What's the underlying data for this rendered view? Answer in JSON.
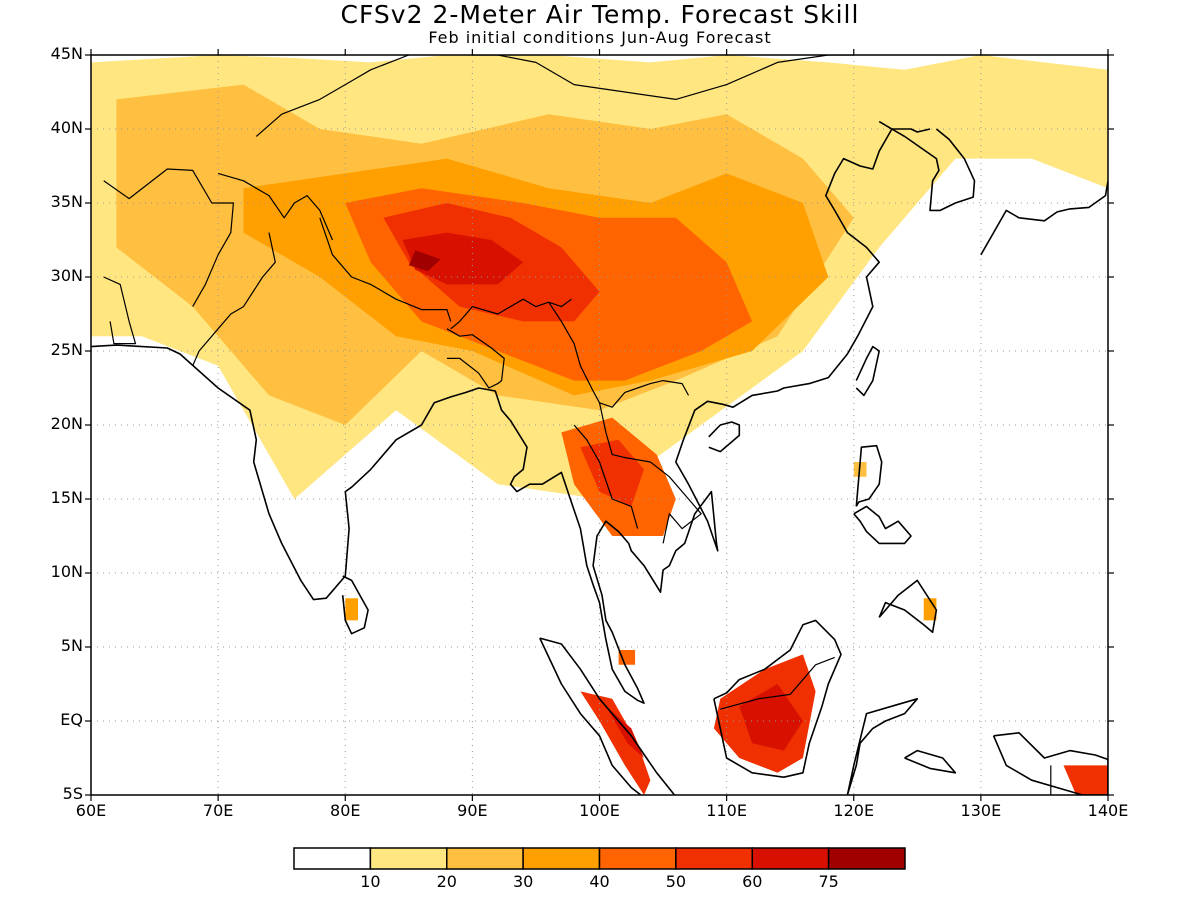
{
  "title": "CFSv2 2-Meter Air Temp. Forecast Skill",
  "subtitle": "Feb initial conditions  Jun-Aug Forecast",
  "map": {
    "lon_range": [
      60,
      140
    ],
    "lat_range": [
      -5,
      45
    ],
    "lon_ticks": [
      "60E",
      "70E",
      "80E",
      "90E",
      "100E",
      "110E",
      "120E",
      "130E",
      "140E"
    ],
    "lat_ticks": [
      "45N",
      "40N",
      "35N",
      "30N",
      "25N",
      "20N",
      "15N",
      "10N",
      "5N",
      "EQ",
      "5S"
    ],
    "gridlines": "dotted"
  },
  "colorbar": {
    "levels": [
      "10",
      "20",
      "30",
      "40",
      "50",
      "60",
      "75"
    ],
    "colors": [
      "#ffffff",
      "#ffe680",
      "#ffbf40",
      "#ffa000",
      "#ff6400",
      "#f03000",
      "#d71000",
      "#a00000"
    ]
  },
  "skill_regions": [
    {
      "level": 1,
      "lons": [
        60,
        70,
        76,
        82,
        88,
        96,
        104,
        110,
        118,
        124,
        130,
        140,
        140,
        134,
        128,
        122,
        116,
        108,
        100,
        92,
        84,
        76,
        70,
        64,
        60
      ],
      "lats": [
        44.5,
        45,
        44.8,
        44.5,
        45,
        45,
        44.5,
        45,
        44.5,
        44,
        45,
        44,
        36,
        38,
        38,
        32,
        25,
        20,
        15,
        16,
        21,
        15,
        24,
        26,
        26
      ]
    },
    {
      "level": 2,
      "lons": [
        62,
        72,
        78,
        86,
        96,
        104,
        110,
        116,
        120,
        114,
        106,
        100,
        92,
        86,
        80,
        74,
        68,
        62
      ],
      "lats": [
        42,
        43,
        40,
        39,
        41,
        40,
        41,
        38,
        34,
        26,
        23,
        21,
        22,
        25,
        20,
        22,
        28,
        32
      ]
    },
    {
      "level": 3,
      "lons": [
        72,
        80,
        88,
        96,
        104,
        110,
        116,
        118,
        112,
        104,
        98,
        90,
        84,
        78,
        72
      ],
      "lats": [
        36,
        37,
        38,
        36,
        35,
        37,
        35,
        30,
        25,
        23,
        22,
        25,
        26,
        30,
        33
      ]
    },
    {
      "level": 4,
      "lons": [
        80,
        86,
        94,
        100,
        106,
        110,
        112,
        108,
        102,
        98,
        92,
        86,
        82
      ],
      "lats": [
        35,
        36,
        35,
        34,
        34,
        31,
        27,
        25,
        23,
        23,
        25,
        27,
        31
      ]
    },
    {
      "level": 5,
      "lons": [
        83,
        88,
        93,
        97,
        100,
        98,
        94,
        89,
        85
      ],
      "lats": [
        34,
        35,
        34,
        32,
        29,
        27,
        27,
        28,
        31
      ]
    },
    {
      "level": 6,
      "lons": [
        84.5,
        88,
        91.5,
        94,
        92,
        88,
        85.5
      ],
      "lats": [
        32.5,
        33,
        32.5,
        31,
        29.5,
        29.5,
        30.5
      ]
    },
    {
      "level": 7,
      "lons": [
        85.5,
        87.5,
        86.5,
        85
      ],
      "lats": [
        31.8,
        31.2,
        30.4,
        30.8
      ]
    },
    {
      "level": 4,
      "lons": [
        97,
        101,
        104.5,
        106,
        105,
        101,
        98
      ],
      "lats": [
        19.5,
        20.5,
        18,
        15,
        12.5,
        12.5,
        16
      ]
    },
    {
      "level": 5,
      "lons": [
        98.5,
        101.5,
        103.5,
        102.5,
        100
      ],
      "lats": [
        18.5,
        19,
        17,
        14.5,
        15.5
      ]
    },
    {
      "level": 5,
      "lons": [
        109.5,
        113,
        116,
        117,
        116,
        114,
        111,
        109
      ],
      "lats": [
        1.5,
        3.5,
        4.5,
        2,
        -2.5,
        -3.5,
        -2.5,
        -0.5
      ]
    },
    {
      "level": 6,
      "lons": [
        111,
        114,
        116,
        114.5,
        112
      ],
      "lats": [
        1,
        2.5,
        0,
        -2,
        -1.5
      ]
    },
    {
      "level": 5,
      "lons": [
        98.5,
        101,
        103,
        104,
        103.5,
        102,
        100
      ],
      "lats": [
        2,
        1.5,
        -1.5,
        -4,
        -5,
        -3,
        0
      ]
    },
    {
      "level": 6,
      "lons": [
        100.5,
        102.5,
        103.5,
        102.2
      ],
      "lats": [
        1,
        -0.5,
        -2.5,
        -1.5
      ]
    },
    {
      "level": 5,
      "lons": [
        136.5,
        140,
        140,
        137.5
      ],
      "lats": [
        -3,
        -3,
        -5,
        -5
      ]
    },
    {
      "level": 3,
      "lons": [
        125.5,
        126.5,
        126.5,
        125.5
      ],
      "lats": [
        8.3,
        8.3,
        6.8,
        6.8
      ]
    },
    {
      "level": 3,
      "lons": [
        80,
        81,
        81,
        80
      ],
      "lats": [
        8.3,
        8.3,
        6.8,
        6.8
      ]
    },
    {
      "level": 2,
      "lons": [
        120,
        121,
        121,
        120
      ],
      "lats": [
        17.5,
        17.5,
        16.5,
        16.5
      ]
    },
    {
      "level": 4,
      "lons": [
        101.5,
        102.8,
        102.8,
        101.5
      ],
      "lats": [
        4.8,
        4.8,
        3.8,
        3.8
      ]
    }
  ],
  "coastlines": [
    {
      "lons": [
        60,
        62,
        66,
        67,
        70,
        72.5,
        73,
        72.8,
        74,
        75,
        76.5,
        77.5,
        78.5,
        80,
        80.3,
        80,
        80.5,
        82,
        84,
        86,
        87,
        88.3,
        89.5,
        90.5,
        91.8,
        92.3,
        93,
        94.3,
        94,
        93.3,
        93,
        93.5,
        94.5,
        95.5,
        97,
        97.7,
        98.5,
        99,
        99.5,
        100,
        100.3,
        100.5,
        101,
        102,
        103,
        103.5,
        103,
        102,
        101,
        100.5,
        100.2,
        99.5,
        99.8,
        100.5,
        101.5,
        102.3,
        102.5,
        103.5,
        104.8,
        105,
        105.5,
        106,
        106.7,
        107.5,
        108.8,
        109.2,
        109.3,
        108.5,
        107,
        106,
        106.6,
        107.5,
        108.5,
        109.7,
        110.5,
        112,
        114,
        114.5,
        116.5,
        118,
        119.5,
        120.3,
        121.5,
        121,
        122,
        121,
        119.5,
        118.5,
        117.8,
        118.5,
        119.2,
        120.5,
        121.5,
        122,
        123,
        124.5,
        125,
        126
      ],
      "lats": [
        25.3,
        25.4,
        25.2,
        24.8,
        22.5,
        21,
        19,
        17.5,
        14,
        12,
        9.5,
        8.2,
        8.3,
        9.8,
        13,
        15.5,
        15.8,
        17,
        19,
        20,
        21.5,
        21.9,
        22.2,
        22.5,
        22.3,
        21,
        20.3,
        18.5,
        17,
        16.5,
        16,
        15.5,
        16,
        16,
        16.8,
        15,
        13,
        10.5,
        9.2,
        8,
        6.5,
        5.5,
        3.5,
        2,
        1.4,
        1.2,
        2.2,
        3.8,
        6,
        6.8,
        8.5,
        10.5,
        12.5,
        13.5,
        12.8,
        12,
        11.5,
        10.5,
        8.7,
        10.2,
        10.5,
        11.5,
        12,
        14,
        15.5,
        12,
        11.5,
        13.5,
        16,
        17.5,
        19,
        21,
        21.6,
        21.4,
        21.2,
        22,
        22.3,
        22.5,
        22.8,
        23.2,
        24.8,
        26,
        28,
        30,
        31,
        32,
        33,
        34.5,
        35.5,
        37,
        38,
        37.5,
        37.3,
        38.5,
        40,
        40,
        39.8,
        40
      ]
    },
    {
      "lons": [
        122,
        124,
        126.5,
        126.7,
        126.2,
        126,
        126.8,
        128,
        129.4,
        129.5,
        128.7,
        127.5,
        126.5
      ],
      "lats": [
        40.5,
        39.5,
        38,
        37.2,
        36.5,
        34.5,
        34.5,
        35,
        35.4,
        36.5,
        38,
        39.3,
        40
      ]
    },
    {
      "lons": [
        130,
        131,
        132,
        133,
        135,
        136,
        137,
        138.5,
        139.8,
        140
      ],
      "lats": [
        31.5,
        33,
        34.5,
        34,
        33.8,
        34.4,
        34.6,
        34.7,
        35.5,
        36.5
      ]
    },
    {
      "lons": [
        120.2,
        120.8,
        121.5,
        122,
        121.5,
        121,
        120.2
      ],
      "lats": [
        22.5,
        22,
        23,
        25,
        25.3,
        24.5,
        23
      ]
    },
    {
      "lons": [
        108.6,
        109.5,
        111,
        111,
        110.4,
        109.5,
        108.6
      ],
      "lats": [
        18.5,
        18.2,
        19.3,
        20,
        20.2,
        20,
        19.2
      ]
    },
    {
      "lons": [
        79.8,
        80.5,
        81.8,
        81.5,
        80.5,
        80,
        79.8
      ],
      "lats": [
        9.8,
        9.5,
        7.5,
        6.3,
        5.9,
        6.8,
        8.5
      ]
    },
    {
      "lons": [
        95.3,
        97,
        98.5,
        100,
        101,
        102.5,
        103.7,
        104.5,
        105.9,
        105.5,
        104,
        102.5,
        101,
        100,
        98.5,
        97,
        95.3
      ],
      "lats": [
        5.6,
        5.2,
        3.5,
        1.5,
        0.5,
        -1,
        -2.5,
        -3.5,
        -5,
        -5.9,
        -5.5,
        -4.5,
        -3,
        -1,
        0.5,
        2.5,
        5.6
      ]
    },
    {
      "lons": [
        109,
        110,
        111,
        113,
        115,
        116,
        117,
        118.5,
        119,
        118,
        117.5,
        116.5,
        116,
        114.5,
        112,
        110,
        109.5,
        109
      ],
      "lats": [
        1.5,
        1.9,
        2.8,
        3.5,
        4.8,
        6.5,
        6.8,
        5.5,
        4.5,
        2.5,
        1,
        -1.5,
        -3.5,
        -3.8,
        -3.5,
        -2.5,
        -0.5,
        1.5
      ]
    },
    {
      "lons": [
        119.5,
        120,
        121,
        123,
        125,
        124,
        122.5,
        121.5,
        120.5,
        120.2,
        119.5
      ],
      "lats": [
        -5,
        -3,
        0.5,
        1,
        1.5,
        0.5,
        0,
        -0.5,
        -1.5,
        -3,
        -5
      ]
    },
    {
      "lons": [
        120,
        121,
        122,
        122.5,
        123.5,
        124.5,
        124,
        122,
        121,
        120.5,
        120
      ],
      "lats": [
        14,
        14.5,
        13.8,
        13,
        13.5,
        12.5,
        12,
        12,
        12.8,
        13.5,
        14
      ]
    },
    {
      "lons": [
        120.2,
        120.6,
        121.8,
        122.2,
        122,
        121.2,
        120.4,
        120.2
      ],
      "lats": [
        14.5,
        18.5,
        18.6,
        17.5,
        16,
        15,
        14.8,
        14.5
      ]
    },
    {
      "lons": [
        122,
        123.5,
        125,
        126.5,
        126.2,
        125.5,
        124,
        122.5,
        122
      ],
      "lats": [
        7,
        8.5,
        9.5,
        7.5,
        6,
        6.5,
        7.5,
        8,
        7
      ]
    },
    {
      "lons": [
        131,
        133,
        135,
        137,
        139,
        140,
        140,
        138,
        136,
        134,
        132,
        131
      ],
      "lats": [
        -1,
        -0.8,
        -2.5,
        -2,
        -2.3,
        -2.6,
        -5,
        -5,
        -4.5,
        -4,
        -3,
        -1
      ]
    },
    {
      "lons": [
        124,
        126,
        128,
        127,
        125,
        124
      ],
      "lats": [
        -2.5,
        -3.2,
        -3.5,
        -2.5,
        -2,
        -2.5
      ]
    }
  ],
  "borders": [
    {
      "lons": [
        61,
        63,
        66,
        68,
        69.5,
        71.2,
        71,
        70,
        69,
        68
      ],
      "lats": [
        36.5,
        35.3,
        37.3,
        37.2,
        35,
        35,
        33,
        31.5,
        29.5,
        28
      ]
    },
    {
      "lons": [
        61,
        62.3,
        63,
        63.5,
        61.8,
        61.5
      ],
      "lats": [
        30,
        29.5,
        27,
        25.5,
        25.5,
        27
      ]
    },
    {
      "lons": [
        70,
        72,
        74,
        75.2,
        76,
        77,
        78,
        79
      ],
      "lats": [
        37,
        36.5,
        35.5,
        34,
        35,
        35.5,
        34.5,
        32.5
      ]
    },
    {
      "lons": [
        74,
        74.5,
        73.5,
        72,
        71,
        70,
        68.5,
        68
      ],
      "lats": [
        33,
        31,
        30,
        28,
        27.5,
        26.5,
        25,
        24
      ]
    },
    {
      "lons": [
        78,
        79,
        80.5,
        82,
        84,
        86,
        88,
        88.3
      ],
      "lats": [
        34,
        31.5,
        30,
        29.5,
        28.5,
        27.8,
        27.8,
        27
      ]
    },
    {
      "lons": [
        88.3,
        89,
        90,
        92,
        93,
        94,
        95,
        96,
        97,
        97.8
      ],
      "lats": [
        26.5,
        27,
        28,
        27.5,
        28,
        28.5,
        28,
        28.3,
        28,
        28.5
      ]
    },
    {
      "lons": [
        88,
        89,
        90,
        91.5,
        92.5,
        92.3,
        92,
        91.3,
        90.5,
        89,
        88
      ],
      "lats": [
        26.5,
        26,
        26.1,
        25.2,
        24.5,
        23,
        22.8,
        22.5,
        23.5,
        24.5,
        24.5
      ]
    },
    {
      "lons": [
        96,
        97,
        98,
        98.5,
        99.5,
        100,
        101,
        102,
        103,
        104,
        105,
        106.5,
        107
      ],
      "lats": [
        28.3,
        27,
        25.5,
        24,
        22.3,
        21.5,
        21.2,
        22.2,
        22.5,
        22.8,
        23,
        22.8,
        22
      ]
    },
    {
      "lons": [
        100,
        100.5,
        101,
        102,
        104,
        105.5,
        107,
        108,
        106.5,
        105.5,
        105
      ],
      "lats": [
        21.5,
        19.5,
        18,
        17.8,
        17.5,
        16.5,
        15,
        14,
        13,
        14,
        12
      ]
    },
    {
      "lons": [
        98,
        99,
        100,
        101,
        102.5,
        103
      ],
      "lats": [
        20,
        19,
        17.5,
        15,
        14.5,
        13
      ]
    },
    {
      "lons": [
        73,
        75,
        78,
        80,
        82,
        85,
        88,
        90,
        92,
        95,
        98,
        102,
        106,
        110,
        114,
        118,
        120
      ],
      "lats": [
        39.5,
        41,
        42,
        43,
        44,
        45,
        45.5,
        45,
        45,
        44.5,
        43,
        42.5,
        42,
        43,
        44.5,
        45,
        45
      ]
    },
    {
      "lons": [
        109.5,
        112.5,
        115,
        117,
        118.5
      ],
      "lats": [
        0.8,
        1.5,
        1.8,
        3.8,
        4.3
      ]
    },
    {
      "lons": [
        135.5,
        135.5
      ],
      "lats": [
        -3,
        -5
      ]
    }
  ]
}
